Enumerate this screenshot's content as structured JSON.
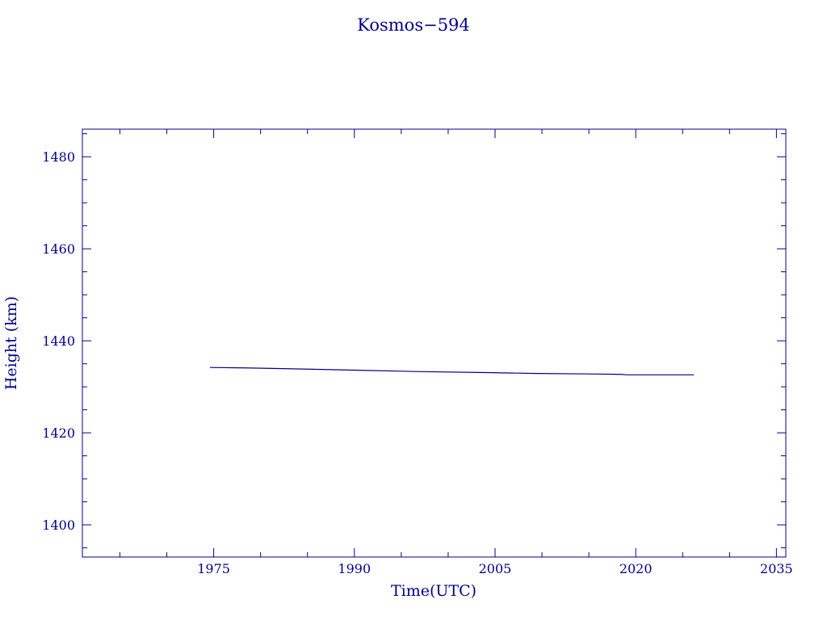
{
  "chart_data": {
    "type": "line",
    "title": "Kosmos−594",
    "xlabel": "Time(UTC)",
    "ylabel": "Height (km)",
    "xlim": [
      1961,
      2036
    ],
    "ylim": [
      1393,
      1486
    ],
    "xticks": [
      1975,
      1990,
      2005,
      2020,
      2035
    ],
    "xtick_labels": [
      "1975",
      "1990",
      "2005",
      "2020",
      "2035"
    ],
    "yticks": [
      1400,
      1420,
      1440,
      1460,
      1480
    ],
    "ytick_labels": [
      "1400",
      "1420",
      "1440",
      "1460",
      "1480"
    ],
    "x_minor_step": 5,
    "y_minor_step": 5,
    "grid": false,
    "colors": {
      "axis": "#00008b",
      "series": "#00008b"
    },
    "series": [
      {
        "x": [
          1974.6,
          1978.5,
          1986.0,
          1990.5,
          1997.0,
          2004.0,
          2009.5,
          2015.0,
          2018.5,
          2019.0,
          2026.2
        ],
        "y": [
          1434.2,
          1434.1,
          1433.8,
          1433.6,
          1433.3,
          1433.1,
          1432.9,
          1432.8,
          1432.7,
          1432.6,
          1432.6
        ]
      }
    ]
  }
}
